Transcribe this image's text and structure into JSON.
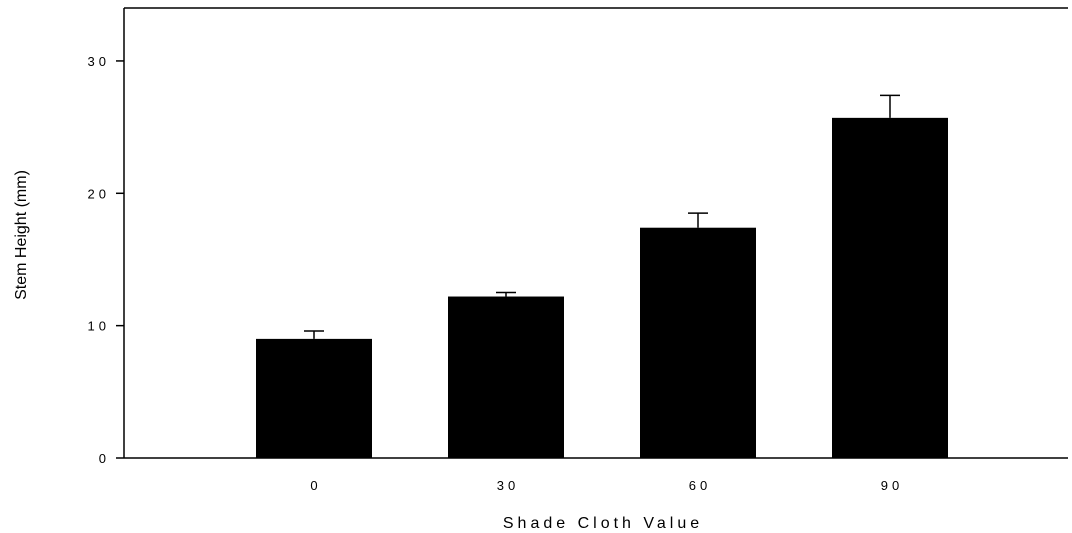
{
  "chart_data": {
    "type": "bar",
    "title": "",
    "xlabel": "Shade Cloth Value",
    "ylabel": "Stem Height (mm)",
    "categories": [
      "0",
      "30",
      "60",
      "90"
    ],
    "values": [
      9.0,
      12.2,
      17.4,
      25.7
    ],
    "error": [
      0.6,
      0.3,
      1.1,
      1.7
    ],
    "ylim": [
      0,
      34
    ],
    "yticks": [
      0,
      10,
      20,
      30
    ],
    "ytick_labels": [
      "0",
      "10",
      "20",
      "30"
    ],
    "grid": false,
    "bar_color": "#000000"
  }
}
